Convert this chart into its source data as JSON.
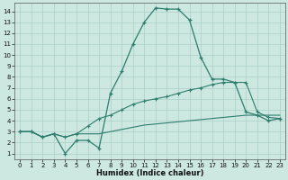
{
  "xlabel": "Humidex (Indice chaleur)",
  "background_color": "#cce8e0",
  "grid_color": "#aacfc8",
  "line_color": "#2e7d6e",
  "x_ticks": [
    0,
    1,
    2,
    3,
    4,
    5,
    6,
    7,
    8,
    9,
    10,
    11,
    12,
    13,
    14,
    15,
    16,
    17,
    18,
    19,
    20,
    21,
    22,
    23
  ],
  "y_ticks": [
    1,
    2,
    3,
    4,
    5,
    6,
    7,
    8,
    9,
    10,
    11,
    12,
    13,
    14
  ],
  "xlim": [
    -0.5,
    23.5
  ],
  "ylim": [
    0.5,
    14.8
  ],
  "series1_x": [
    0,
    1,
    2,
    3,
    4,
    5,
    6,
    7,
    8,
    9,
    10,
    11,
    12,
    13,
    14,
    15,
    16,
    17,
    18,
    19,
    20,
    21,
    22,
    23
  ],
  "series1_y": [
    3.0,
    3.0,
    2.5,
    2.8,
    1.0,
    2.2,
    2.2,
    1.5,
    6.5,
    8.5,
    11.0,
    13.0,
    14.3,
    14.2,
    14.2,
    13.2,
    9.8,
    7.8,
    7.8,
    7.5,
    4.8,
    4.5,
    4.0,
    4.2
  ],
  "series2_x": [
    0,
    1,
    2,
    3,
    4,
    5,
    6,
    7,
    8,
    9,
    10,
    11,
    12,
    13,
    14,
    15,
    16,
    17,
    18,
    19,
    20,
    21,
    22,
    23
  ],
  "series2_y": [
    3.0,
    3.0,
    2.5,
    2.8,
    2.5,
    2.8,
    3.5,
    4.2,
    4.5,
    5.0,
    5.5,
    5.8,
    6.0,
    6.2,
    6.5,
    6.8,
    7.0,
    7.3,
    7.5,
    7.5,
    7.5,
    4.8,
    4.3,
    4.2
  ],
  "series3_x": [
    0,
    1,
    2,
    3,
    4,
    5,
    6,
    7,
    8,
    9,
    10,
    11,
    12,
    13,
    14,
    15,
    16,
    17,
    18,
    19,
    20,
    21,
    22,
    23
  ],
  "series3_y": [
    3.0,
    3.0,
    2.5,
    2.8,
    2.5,
    2.8,
    2.8,
    2.8,
    3.0,
    3.2,
    3.4,
    3.6,
    3.7,
    3.8,
    3.9,
    4.0,
    4.1,
    4.2,
    4.3,
    4.4,
    4.5,
    4.5,
    4.5,
    4.5
  ]
}
